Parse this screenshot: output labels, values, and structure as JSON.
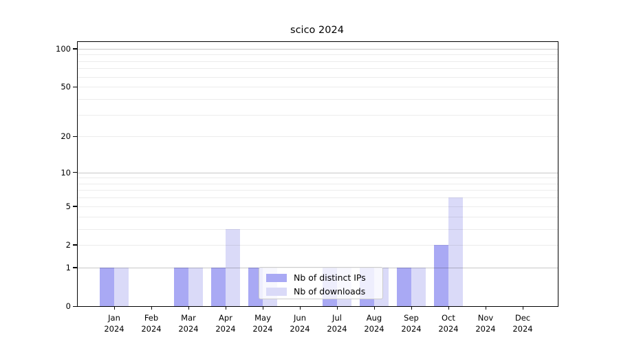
{
  "chart_data": {
    "type": "bar",
    "title": "scico 2024",
    "categories": [
      "Jan",
      "Feb",
      "Mar",
      "Apr",
      "May",
      "Jun",
      "Jul",
      "Aug",
      "Sep",
      "Oct",
      "Nov",
      "Dec"
    ],
    "category_year": "2024",
    "series": [
      {
        "name": "Nb of distinct IPs",
        "color": "#a9a9f4",
        "values": [
          1,
          0,
          1,
          1,
          1,
          0,
          1,
          1,
          1,
          2,
          0,
          0
        ]
      },
      {
        "name": "Nb of downloads",
        "color": "#dadaf8",
        "values": [
          1,
          0,
          1,
          3,
          1,
          0,
          1,
          1,
          1,
          6,
          0,
          0
        ]
      }
    ],
    "xlabel": "",
    "ylabel": "",
    "y_scale": "log1p",
    "ylim": [
      0,
      113
    ],
    "y_ticks": [
      0,
      1,
      2,
      5,
      10,
      20,
      50,
      100
    ],
    "grid": {
      "major_values": [
        1,
        10,
        100
      ],
      "minor_values": [
        2,
        3,
        4,
        5,
        6,
        7,
        8,
        9,
        20,
        30,
        40,
        50,
        60,
        70,
        80,
        90
      ]
    },
    "legend": {
      "position": "lower center",
      "entries": [
        "Nb of distinct IPs",
        "Nb of downloads"
      ]
    }
  }
}
